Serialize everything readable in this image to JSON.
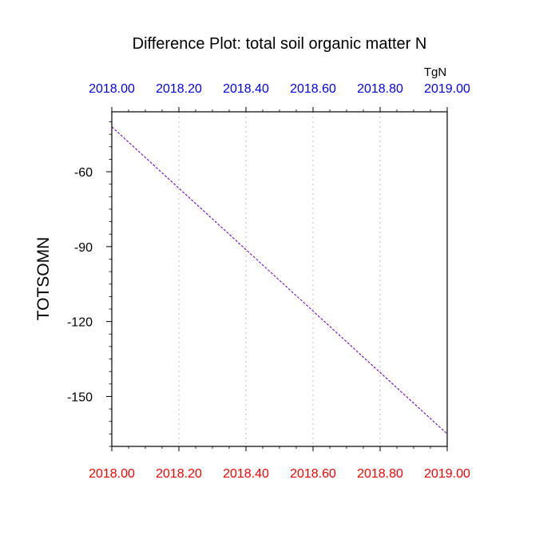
{
  "chart_data": {
    "type": "line",
    "title": "Difference Plot: total soil organic matter N",
    "ylabel": "TOTSOMN",
    "units": "TgN",
    "xlim": [
      2018.0,
      2019.0
    ],
    "ylim": [
      -170,
      -36
    ],
    "x_ticks": [
      "2018.00",
      "2018.20",
      "2018.40",
      "2018.60",
      "2018.80",
      "2019.00"
    ],
    "x_tick_values": [
      2018.0,
      2018.2,
      2018.4,
      2018.6,
      2018.8,
      2019.0
    ],
    "y_ticks": [
      "-60",
      "-90",
      "-120",
      "-150"
    ],
    "y_tick_values": [
      -60,
      -90,
      -120,
      -150
    ],
    "y_minor_step": 5,
    "grid": "vertical dotted",
    "top_tick_color": "#0000ff",
    "bottom_tick_color": "#ff0000",
    "series": [
      {
        "style": "dashed",
        "color": "#7a00c8",
        "x": [
          2018.0,
          2019.0
        ],
        "values": [
          -42,
          -165
        ]
      }
    ]
  }
}
